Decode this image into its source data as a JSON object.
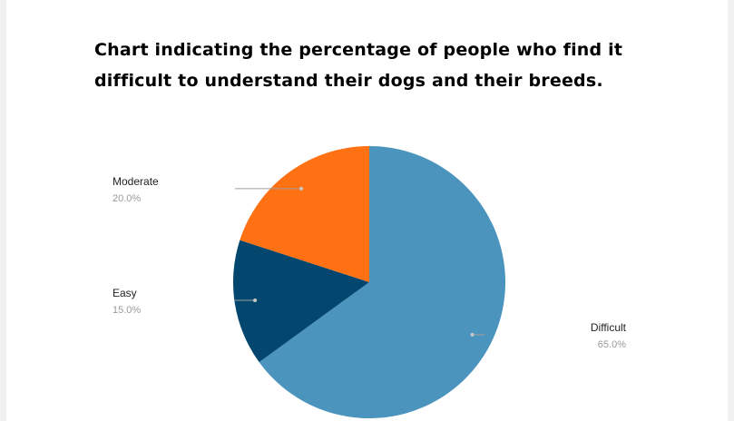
{
  "chart_data": {
    "type": "pie",
    "title": "Chart indicating the percentage of people who find it difficult to understand their dogs and their breeds.",
    "categories": [
      "Difficult",
      "Easy",
      "Moderate"
    ],
    "values": [
      65.0,
      15.0,
      20.0
    ],
    "value_labels": [
      "65.0%",
      "15.0%",
      "20.0%"
    ],
    "colors": [
      "#4a94bd",
      "#03476f",
      "#ff7113"
    ],
    "legend": "none"
  }
}
